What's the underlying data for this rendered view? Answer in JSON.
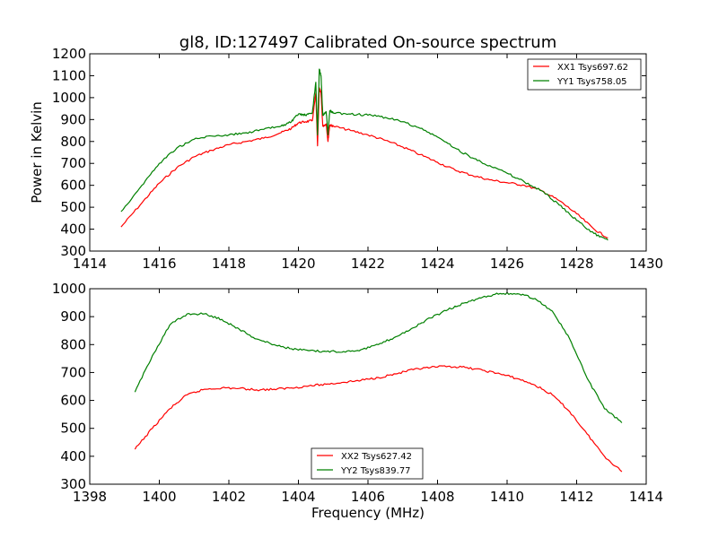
{
  "figure": {
    "title": "gl8, ID:127497 Calibrated On-source spectrum"
  },
  "chart_data": [
    {
      "type": "line",
      "title": "gl8, ID:127497 Calibrated On-source spectrum",
      "xlabel": "",
      "ylabel": "Power in Kelvin",
      "xlim": [
        1414,
        1430
      ],
      "ylim": [
        300,
        1200
      ],
      "xticks": [
        "1414",
        "1416",
        "1418",
        "1420",
        "1422",
        "1424",
        "1426",
        "1428",
        "1430"
      ],
      "yticks": [
        "300",
        "400",
        "500",
        "600",
        "700",
        "800",
        "900",
        "1000",
        "1100",
        "1200"
      ],
      "grid": false,
      "legend_position": "top-right",
      "series": [
        {
          "name": "XX1 Tsys697.62",
          "color": "#ff0000",
          "x": [
            1414.9,
            1415.5,
            1416.0,
            1416.5,
            1417.0,
            1417.5,
            1418.0,
            1418.5,
            1419.0,
            1419.5,
            1419.8,
            1420.0,
            1420.2,
            1420.4,
            1420.5,
            1420.55,
            1420.6,
            1420.65,
            1420.7,
            1420.8,
            1420.85,
            1420.9,
            1421.0,
            1421.5,
            1422.0,
            1422.5,
            1423.0,
            1423.5,
            1424.0,
            1424.5,
            1425.0,
            1425.5,
            1426.0,
            1426.5,
            1427.0,
            1427.5,
            1428.0,
            1428.5,
            1428.9
          ],
          "y": [
            410,
            520,
            610,
            680,
            730,
            760,
            785,
            800,
            815,
            840,
            860,
            885,
            890,
            895,
            1020,
            780,
            1045,
            1020,
            870,
            880,
            800,
            875,
            870,
            850,
            830,
            805,
            775,
            740,
            705,
            670,
            645,
            625,
            612,
            600,
            575,
            530,
            470,
            400,
            360
          ]
        },
        {
          "name": "YY1 Tsys758.05",
          "color": "#008000",
          "x": [
            1414.9,
            1415.5,
            1416.0,
            1416.5,
            1417.0,
            1417.5,
            1418.0,
            1418.5,
            1419.0,
            1419.5,
            1419.8,
            1420.0,
            1420.2,
            1420.4,
            1420.5,
            1420.55,
            1420.6,
            1420.65,
            1420.7,
            1420.8,
            1420.85,
            1420.9,
            1421.0,
            1421.5,
            1422.0,
            1422.5,
            1423.0,
            1423.5,
            1424.0,
            1424.5,
            1425.0,
            1425.5,
            1426.0,
            1426.5,
            1427.0,
            1427.5,
            1428.0,
            1428.5,
            1428.9
          ],
          "y": [
            480,
            600,
            700,
            770,
            810,
            825,
            830,
            840,
            855,
            870,
            890,
            925,
            920,
            930,
            1070,
            830,
            1130,
            1100,
            920,
            935,
            830,
            940,
            930,
            925,
            920,
            910,
            890,
            860,
            820,
            770,
            725,
            690,
            655,
            615,
            575,
            510,
            440,
            380,
            350
          ]
        }
      ]
    },
    {
      "type": "line",
      "xlabel": "Frequency (MHz)",
      "ylabel": "",
      "xlim": [
        1398,
        1414
      ],
      "ylim": [
        300,
        1000
      ],
      "xticks": [
        "1398",
        "1400",
        "1402",
        "1404",
        "1406",
        "1408",
        "1410",
        "1412",
        "1414"
      ],
      "yticks": [
        "300",
        "400",
        "500",
        "600",
        "700",
        "800",
        "900",
        "1000"
      ],
      "grid": false,
      "legend_position": "bottom-center",
      "series": [
        {
          "name": "XX2 Tsys627.42",
          "color": "#ff0000",
          "x": [
            1399.3,
            1399.8,
            1400.3,
            1400.8,
            1401.3,
            1401.8,
            1402.3,
            1402.8,
            1403.3,
            1403.8,
            1404.3,
            1404.8,
            1405.3,
            1405.8,
            1406.3,
            1406.8,
            1407.3,
            1407.8,
            1408.3,
            1408.8,
            1409.3,
            1409.8,
            1410.3,
            1410.8,
            1411.3,
            1411.8,
            1412.3,
            1412.8,
            1413.3
          ],
          "y": [
            425,
            500,
            570,
            620,
            640,
            645,
            643,
            638,
            640,
            645,
            652,
            658,
            665,
            672,
            682,
            695,
            710,
            718,
            722,
            718,
            708,
            695,
            678,
            655,
            620,
            560,
            480,
            400,
            345
          ]
        },
        {
          "name": "YY2 Tsys839.77",
          "color": "#008000",
          "x": [
            1399.3,
            1399.8,
            1400.3,
            1400.8,
            1401.3,
            1401.8,
            1402.3,
            1402.8,
            1403.3,
            1403.8,
            1404.3,
            1404.8,
            1405.3,
            1405.8,
            1406.3,
            1406.8,
            1407.3,
            1407.8,
            1408.3,
            1408.8,
            1409.3,
            1409.8,
            1410.3,
            1410.8,
            1411.3,
            1411.8,
            1412.3,
            1412.8,
            1413.3
          ],
          "y": [
            630,
            760,
            870,
            910,
            910,
            890,
            855,
            820,
            800,
            785,
            778,
            775,
            775,
            782,
            800,
            828,
            860,
            895,
            925,
            950,
            970,
            983,
            982,
            965,
            920,
            820,
            680,
            570,
            520
          ]
        }
      ]
    }
  ]
}
